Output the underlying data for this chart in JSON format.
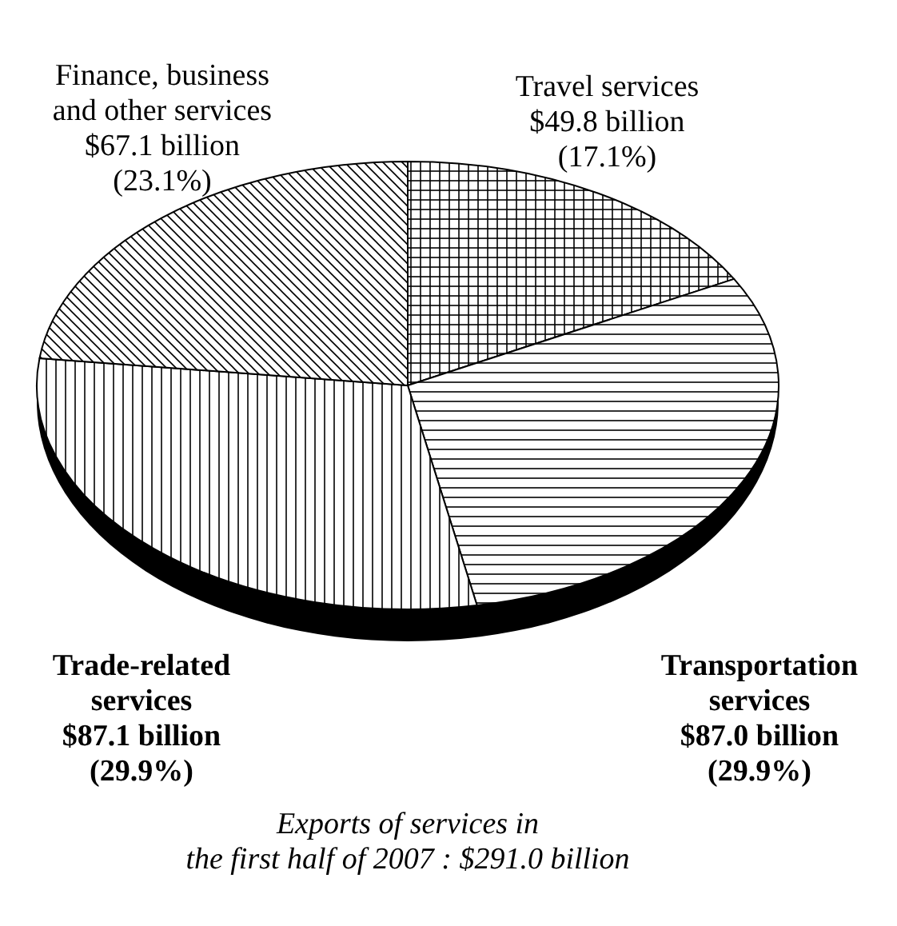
{
  "chart_data": {
    "type": "pie",
    "title": "Exports of services in\nthe first half of 2007 : $291.0 billion",
    "categories": [
      "Travel services",
      "Transportation services",
      "Trade-related services",
      "Finance, business and other services"
    ],
    "values": [
      49.8,
      87.0,
      87.1,
      67.1
    ],
    "value_labels": [
      "$49.8 billion",
      "$87.0 billion",
      "$87.1 billion",
      "$67.1 billion"
    ],
    "annotations": [
      "(17.1%)",
      "(29.9%)",
      "(29.9%)",
      "(23.1%)"
    ],
    "colors": [
      "#000000",
      "#000000",
      "#000000",
      "#000000"
    ]
  }
}
